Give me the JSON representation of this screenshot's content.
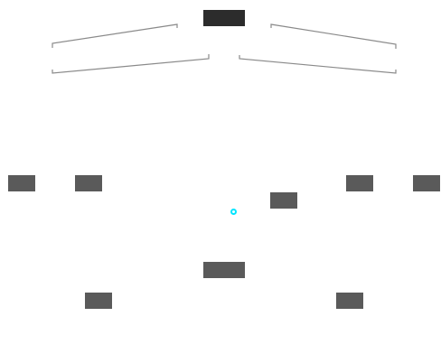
{
  "colors": {
    "root_node": "#2c2c2c",
    "child_node": "#5a5a5a",
    "connector": "#8a8a8a",
    "marker": "#00e5ff",
    "background": "#ffffff"
  },
  "nodes": [
    {
      "id": "root",
      "label": ""
    },
    {
      "id": "left-1",
      "label": ""
    },
    {
      "id": "left-2",
      "label": ""
    },
    {
      "id": "right-1",
      "label": ""
    },
    {
      "id": "right-2",
      "label": ""
    },
    {
      "id": "center-1",
      "label": ""
    },
    {
      "id": "center-2",
      "label": ""
    },
    {
      "id": "bottom-left",
      "label": ""
    },
    {
      "id": "bottom-right",
      "label": ""
    }
  ],
  "marker": {
    "icon": "target-point-icon"
  }
}
